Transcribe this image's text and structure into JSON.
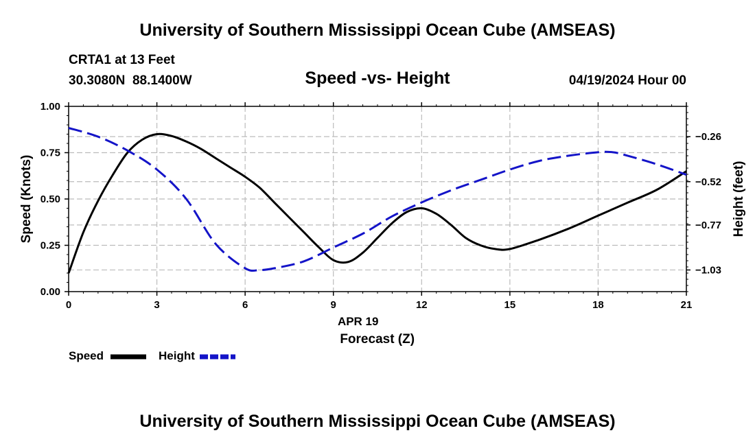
{
  "page_title": "University of Southern Mississippi Ocean Cube (AMSEAS)",
  "footer_title": "University of Southern Mississippi Ocean Cube (AMSEAS)",
  "station": {
    "name": "CRTA1 at 13 Feet",
    "coords": "30.3080N  88.1400W"
  },
  "datetime": "04/19/2024 Hour 00",
  "colors": {
    "speed": "#000000",
    "height": "#1414c8",
    "grid": "#bbbbbb"
  },
  "chart_data": {
    "type": "line",
    "title": "Speed -vs- Height",
    "xlabel": "Forecast (Z)",
    "xlabel_date": "APR 19",
    "ylabel_left": "Speed (Knots)",
    "ylabel_right": "Height (feet)",
    "xlim": [
      0,
      21
    ],
    "ylim_left": [
      0,
      1.0
    ],
    "ylim_right": [
      -1.155,
      -0.085
    ],
    "x_ticks": [
      0,
      3,
      6,
      9,
      12,
      15,
      18,
      21
    ],
    "x_tick_labels": [
      "0",
      "3",
      "6",
      "9",
      "12",
      "15",
      "18",
      "21"
    ],
    "y_left_ticks": [
      0,
      0.25,
      0.5,
      0.75,
      1.0
    ],
    "y_left_tick_labels": [
      "0.00",
      "0.25",
      "0.50",
      "0.75",
      "1.00"
    ],
    "y_right_ticks": [
      -1.03,
      -0.77,
      -0.52,
      -0.26
    ],
    "y_right_tick_labels": [
      "−1.03",
      "−0.77",
      "−0.52",
      "−0.26"
    ],
    "grid": true,
    "series": [
      {
        "name": "Speed",
        "axis": "left",
        "style": "solid",
        "x": [
          0,
          0.5,
          1,
          1.5,
          2,
          2.5,
          3,
          3.5,
          4,
          4.5,
          5,
          5.5,
          6,
          6.5,
          7,
          7.5,
          8,
          8.5,
          9,
          9.5,
          10,
          10.5,
          11,
          11.5,
          12,
          12.5,
          13,
          13.5,
          14,
          14.5,
          15,
          16,
          17,
          18,
          19,
          20,
          21
        ],
        "values": [
          0.1,
          0.32,
          0.49,
          0.63,
          0.75,
          0.82,
          0.85,
          0.84,
          0.81,
          0.77,
          0.72,
          0.67,
          0.62,
          0.56,
          0.48,
          0.4,
          0.32,
          0.24,
          0.17,
          0.16,
          0.21,
          0.29,
          0.37,
          0.43,
          0.45,
          0.42,
          0.36,
          0.29,
          0.25,
          0.23,
          0.23,
          0.28,
          0.34,
          0.41,
          0.48,
          0.55,
          0.65
        ]
      },
      {
        "name": "Height",
        "axis": "right",
        "style": "dashed",
        "x": [
          0,
          1,
          2,
          3,
          4,
          5,
          6,
          6.5,
          7,
          8,
          9,
          10,
          11,
          12,
          13,
          14,
          15,
          16,
          17,
          18,
          18.5,
          19,
          20,
          21
        ],
        "values": [
          -0.21,
          -0.26,
          -0.34,
          -0.45,
          -0.62,
          -0.88,
          -1.02,
          -1.03,
          -1.02,
          -0.98,
          -0.9,
          -0.82,
          -0.72,
          -0.64,
          -0.57,
          -0.51,
          -0.45,
          -0.4,
          -0.37,
          -0.35,
          -0.35,
          -0.37,
          -0.42,
          -0.48
        ]
      }
    ]
  }
}
